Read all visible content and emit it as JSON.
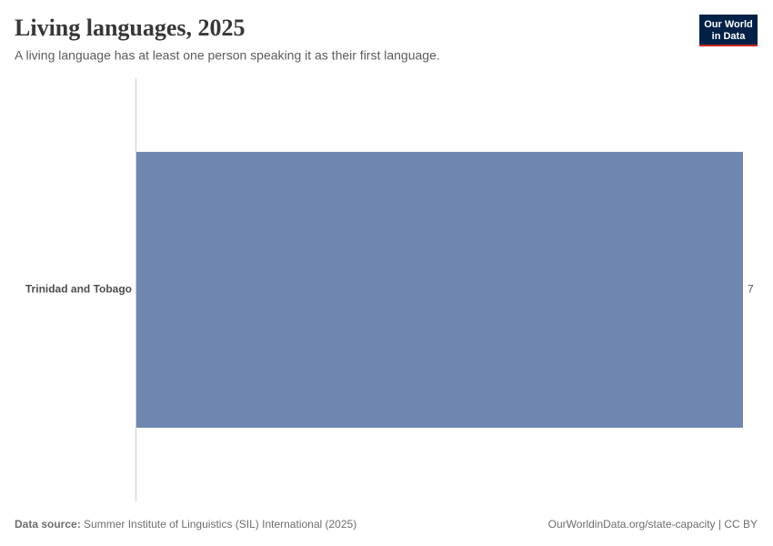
{
  "chart_data": {
    "type": "hbar",
    "title": "Living languages, 2025",
    "subtitle": "A living language has at least one person speaking it as their first language.",
    "categories": [
      "Trinidad and Tobago"
    ],
    "values": [
      7
    ],
    "color": "#6f87b0",
    "xlim": [
      0,
      7
    ],
    "source_label": "Data source:",
    "source": "Summer Institute of Linguistics (SIL) International (2025)",
    "url": "OurWorldinData.org/state-capacity | CC BY"
  },
  "logo": [
    "Our World",
    "in Data"
  ]
}
